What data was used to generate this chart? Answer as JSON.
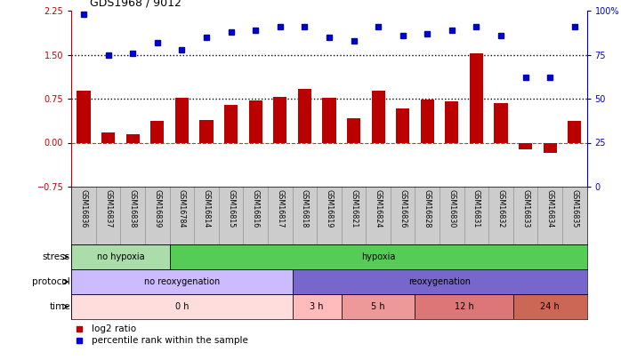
{
  "title": "GDS1968 / 9012",
  "samples": [
    "GSM16836",
    "GSM16837",
    "GSM16838",
    "GSM16839",
    "GSM16784",
    "GSM16814",
    "GSM16815",
    "GSM16816",
    "GSM16817",
    "GSM16818",
    "GSM16819",
    "GSM16821",
    "GSM16824",
    "GSM16826",
    "GSM16828",
    "GSM16830",
    "GSM16831",
    "GSM16832",
    "GSM16833",
    "GSM16834",
    "GSM16835"
  ],
  "log2_ratio": [
    0.88,
    0.18,
    0.15,
    0.37,
    0.77,
    0.38,
    0.65,
    0.72,
    0.78,
    0.92,
    0.77,
    0.42,
    0.88,
    0.58,
    0.73,
    0.7,
    1.52,
    0.68,
    -0.12,
    -0.18,
    0.37
  ],
  "percentile": [
    98,
    75,
    76,
    82,
    78,
    85,
    88,
    89,
    91,
    91,
    85,
    83,
    91,
    86,
    87,
    89,
    91,
    86,
    62,
    62,
    91
  ],
  "bar_color": "#bb0000",
  "dot_color": "#0000cc",
  "hline_dotted": [
    1.5,
    0.75
  ],
  "hline_dashed": 0.0,
  "ylim_left": [
    -0.75,
    2.25
  ],
  "ylim_right": [
    0,
    100
  ],
  "yticks_left": [
    -0.75,
    0.0,
    0.75,
    1.5,
    2.25
  ],
  "yticks_right": [
    0,
    25,
    50,
    75,
    100
  ],
  "stress_groups": [
    {
      "label": "no hypoxia",
      "start": 0,
      "end": 4,
      "color": "#aaddaa"
    },
    {
      "label": "hypoxia",
      "start": 4,
      "end": 21,
      "color": "#55cc55"
    }
  ],
  "protocol_groups": [
    {
      "label": "no reoxygenation",
      "start": 0,
      "end": 9,
      "color": "#ccbbff"
    },
    {
      "label": "reoxygenation",
      "start": 9,
      "end": 21,
      "color": "#7766cc"
    }
  ],
  "time_groups": [
    {
      "label": "0 h",
      "start": 0,
      "end": 9,
      "color": "#ffdddd"
    },
    {
      "label": "3 h",
      "start": 9,
      "end": 11,
      "color": "#ffbbbb"
    },
    {
      "label": "5 h",
      "start": 11,
      "end": 14,
      "color": "#ee9999"
    },
    {
      "label": "12 h",
      "start": 14,
      "end": 18,
      "color": "#dd7777"
    },
    {
      "label": "24 h",
      "start": 18,
      "end": 21,
      "color": "#cc6655"
    }
  ],
  "row_labels": [
    "stress",
    "protocol",
    "time"
  ],
  "legend_items": [
    {
      "color": "#bb0000",
      "label": "log2 ratio"
    },
    {
      "color": "#0000cc",
      "label": "percentile rank within the sample"
    }
  ],
  "bg_color": "#ffffff",
  "label_bg": "#cccccc"
}
